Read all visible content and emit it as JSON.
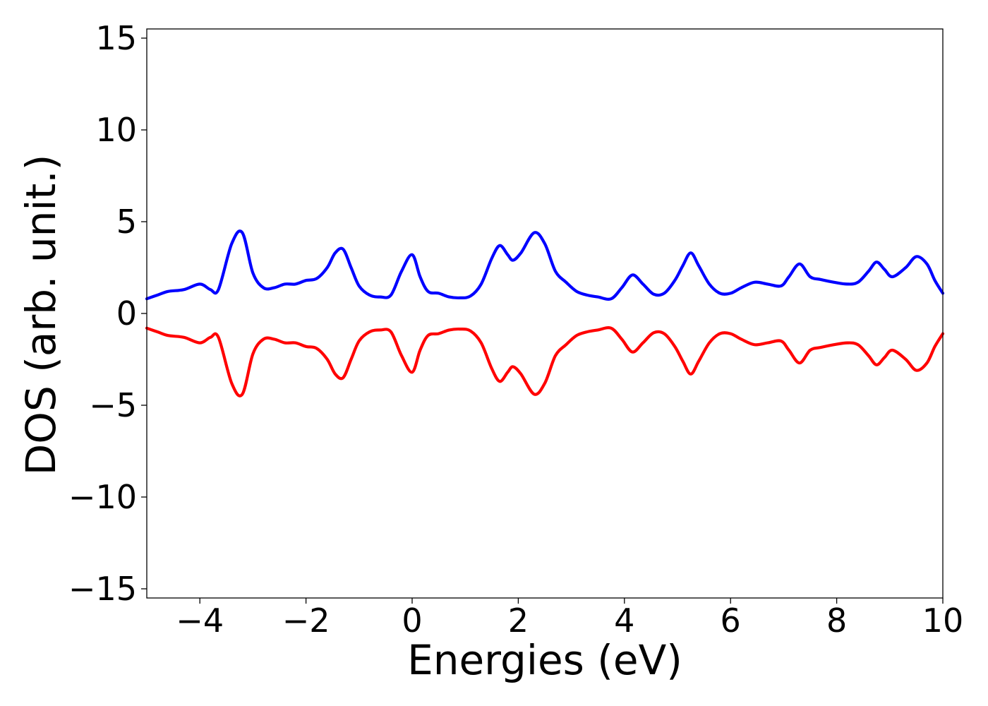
{
  "chart_data": {
    "type": "line",
    "title": "",
    "xlabel": "Energies (eV)",
    "ylabel": "DOS (arb. unit.)",
    "xlim": [
      -5,
      10
    ],
    "ylim": [
      -15.5,
      15.5
    ],
    "grid": false,
    "legend": "none",
    "xticks": [
      -4,
      -2,
      0,
      2,
      4,
      6,
      8,
      10
    ],
    "xtick_labels": [
      "−4",
      "−2",
      "0",
      "2",
      "4",
      "6",
      "8",
      "10"
    ],
    "yticks": [
      15,
      10,
      5,
      0,
      -5,
      -10,
      -15
    ],
    "ytick_labels": [
      "15",
      "10",
      "5",
      "0",
      "−5",
      "−10",
      "−15"
    ],
    "series": [
      {
        "color": "#0000ff",
        "x": [
          -5.0,
          -4.8,
          -4.6,
          -4.3,
          -4.0,
          -3.8,
          -3.65,
          -3.4,
          -3.2,
          -3.0,
          -2.8,
          -2.6,
          -2.4,
          -2.2,
          -2.0,
          -1.8,
          -1.6,
          -1.45,
          -1.3,
          -1.15,
          -1.0,
          -0.8,
          -0.6,
          -0.4,
          -0.2,
          0.0,
          0.15,
          0.3,
          0.5,
          0.7,
          0.9,
          1.1,
          1.3,
          1.5,
          1.65,
          1.8,
          1.9,
          2.05,
          2.3,
          2.5,
          2.7,
          2.9,
          3.1,
          3.3,
          3.5,
          3.75,
          3.95,
          4.15,
          4.35,
          4.55,
          4.75,
          4.95,
          5.1,
          5.25,
          5.4,
          5.6,
          5.8,
          6.0,
          6.2,
          6.45,
          6.7,
          6.95,
          7.1,
          7.3,
          7.5,
          7.7,
          7.95,
          8.2,
          8.4,
          8.6,
          8.75,
          8.9,
          9.05,
          9.3,
          9.5,
          9.7,
          9.85,
          10.0
        ],
        "values": [
          0.8,
          1.0,
          1.2,
          1.3,
          1.6,
          1.3,
          1.3,
          3.8,
          4.4,
          2.2,
          1.4,
          1.4,
          1.6,
          1.6,
          1.8,
          1.9,
          2.5,
          3.3,
          3.5,
          2.5,
          1.5,
          1.0,
          0.9,
          1.0,
          2.3,
          3.2,
          2.0,
          1.2,
          1.1,
          0.9,
          0.85,
          0.95,
          1.6,
          3.0,
          3.7,
          3.2,
          2.9,
          3.3,
          4.4,
          3.8,
          2.3,
          1.7,
          1.2,
          1.0,
          0.9,
          0.8,
          1.4,
          2.1,
          1.6,
          1.05,
          1.1,
          1.8,
          2.6,
          3.3,
          2.6,
          1.6,
          1.1,
          1.1,
          1.4,
          1.7,
          1.6,
          1.5,
          2.0,
          2.7,
          2.0,
          1.85,
          1.7,
          1.6,
          1.7,
          2.3,
          2.8,
          2.4,
          2.0,
          2.5,
          3.1,
          2.7,
          1.8,
          1.1
        ]
      },
      {
        "color": "#ff0000",
        "x": [
          -5.0,
          -4.8,
          -4.6,
          -4.3,
          -4.0,
          -3.8,
          -3.65,
          -3.4,
          -3.2,
          -3.0,
          -2.8,
          -2.6,
          -2.4,
          -2.2,
          -2.0,
          -1.8,
          -1.6,
          -1.45,
          -1.3,
          -1.15,
          -1.0,
          -0.8,
          -0.6,
          -0.4,
          -0.2,
          0.0,
          0.15,
          0.3,
          0.5,
          0.7,
          0.9,
          1.1,
          1.3,
          1.5,
          1.65,
          1.8,
          1.9,
          2.05,
          2.3,
          2.5,
          2.7,
          2.9,
          3.1,
          3.3,
          3.5,
          3.75,
          3.95,
          4.15,
          4.35,
          4.55,
          4.75,
          4.95,
          5.1,
          5.25,
          5.4,
          5.6,
          5.8,
          6.0,
          6.2,
          6.45,
          6.7,
          6.95,
          7.1,
          7.3,
          7.5,
          7.7,
          7.95,
          8.2,
          8.4,
          8.6,
          8.75,
          8.9,
          9.05,
          9.3,
          9.5,
          9.7,
          9.85,
          10.0
        ],
        "values": [
          -0.8,
          -1.0,
          -1.2,
          -1.3,
          -1.6,
          -1.3,
          -1.3,
          -3.8,
          -4.4,
          -2.2,
          -1.4,
          -1.4,
          -1.6,
          -1.6,
          -1.8,
          -1.9,
          -2.5,
          -3.3,
          -3.5,
          -2.5,
          -1.5,
          -1.0,
          -0.9,
          -1.0,
          -2.3,
          -3.2,
          -2.0,
          -1.2,
          -1.1,
          -0.9,
          -0.85,
          -0.95,
          -1.6,
          -3.0,
          -3.7,
          -3.2,
          -2.9,
          -3.3,
          -4.4,
          -3.8,
          -2.3,
          -1.7,
          -1.2,
          -1.0,
          -0.9,
          -0.8,
          -1.4,
          -2.1,
          -1.6,
          -1.05,
          -1.1,
          -1.8,
          -2.6,
          -3.3,
          -2.6,
          -1.6,
          -1.1,
          -1.1,
          -1.4,
          -1.7,
          -1.6,
          -1.5,
          -2.0,
          -2.7,
          -2.0,
          -1.85,
          -1.7,
          -1.6,
          -1.7,
          -2.3,
          -2.8,
          -2.4,
          -2.0,
          -2.5,
          -3.1,
          -2.7,
          -1.8,
          -1.1
        ]
      }
    ]
  }
}
